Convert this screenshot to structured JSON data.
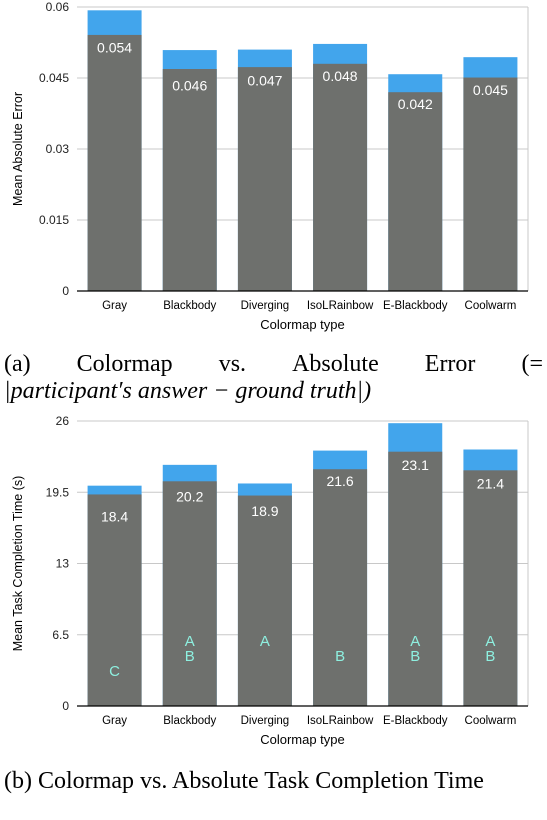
{
  "figure_a": {
    "caption_label": "(a)",
    "caption_words": [
      "Colormap",
      "vs.",
      "Absolute",
      "Error",
      "(="
    ],
    "caption_line2": "|participant′s answer − ground truth|)"
  },
  "figure_b": {
    "caption": "(b) Colormap vs. Absolute Task Completion Time"
  },
  "colors": {
    "bar": "#6e706d",
    "error_cap": "#42a5ec",
    "value_label": "#ffffff",
    "letter": "#8ef0e0",
    "grid": "#c8c8c8",
    "axis": "#000000"
  },
  "chart_data": [
    {
      "type": "bar",
      "title": "",
      "xlabel": "Colormap type",
      "ylabel": "Mean Absolute Error",
      "categories": [
        "Gray",
        "Blackbody",
        "Diverging",
        "IsoLRainbow",
        "E-Blackbody",
        "Coolwarm"
      ],
      "values": [
        0.054,
        0.046,
        0.047,
        0.048,
        0.042,
        0.045
      ],
      "value_labels": [
        "0.054",
        "0.046",
        "0.047",
        "0.048",
        "0.042",
        "0.045"
      ],
      "error_upper": [
        0.0593,
        0.0509,
        0.051,
        0.0522,
        0.0458,
        0.0494
      ],
      "error_lower": [
        0.0541,
        0.0469,
        0.0473,
        0.048,
        0.042,
        0.0451
      ],
      "ylim": [
        0,
        0.06
      ],
      "yticks": [
        0,
        0.015,
        0.03,
        0.045,
        0.06
      ],
      "ytick_labels": [
        "0",
        "0.015",
        "0.03",
        "0.045",
        "0.06"
      ],
      "grid": true
    },
    {
      "type": "bar",
      "title": "",
      "xlabel": "Colormap type",
      "ylabel": "Mean Task Completion Time (s)",
      "categories": [
        "Gray",
        "Blackbody",
        "Diverging",
        "IsoLRainbow",
        "E-Blackbody",
        "Coolwarm"
      ],
      "values": [
        18.4,
        20.2,
        18.9,
        21.6,
        23.1,
        21.4
      ],
      "value_labels": [
        "18.4",
        "20.2",
        "18.9",
        "21.6",
        "23.1",
        "21.4"
      ],
      "error_upper": [
        20.1,
        22.0,
        20.3,
        23.3,
        25.8,
        23.4
      ],
      "error_lower": [
        19.3,
        20.5,
        19.2,
        21.6,
        23.2,
        21.5
      ],
      "ylim": [
        0,
        26
      ],
      "yticks": [
        0,
        6.5,
        13,
        19.5,
        26
      ],
      "ytick_labels": [
        "0",
        "6.5",
        "13",
        "19.5",
        "26"
      ],
      "grid": true,
      "group_letters": [
        [
          "C"
        ],
        [
          "A",
          "B"
        ],
        [
          "A"
        ],
        [
          "B"
        ],
        [
          "A",
          "B"
        ],
        [
          "A",
          "B"
        ]
      ]
    }
  ]
}
